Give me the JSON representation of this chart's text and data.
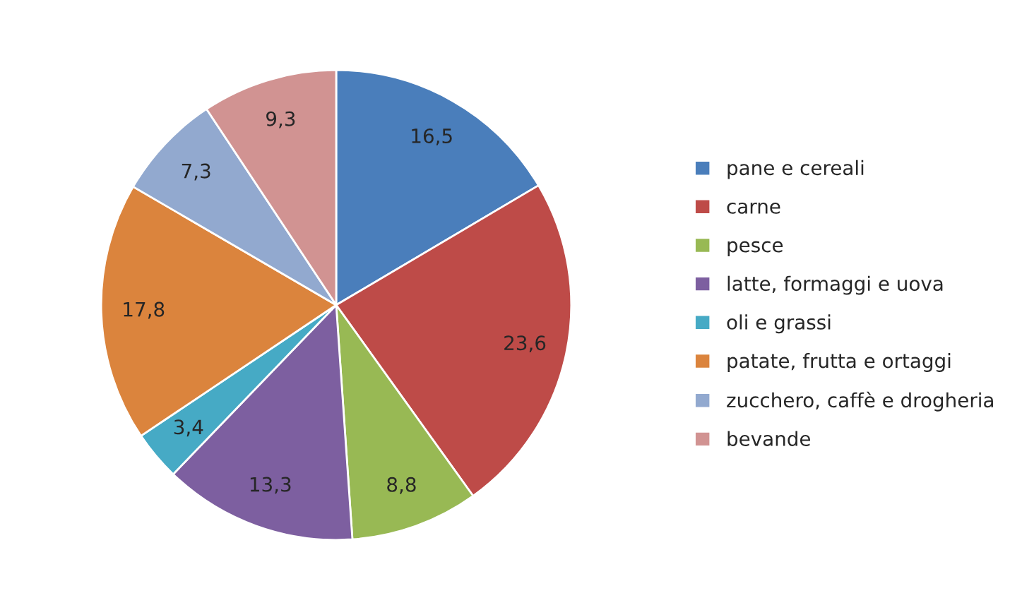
{
  "chart_data": {
    "type": "pie",
    "categories": [
      "pane e cereali",
      "carne",
      "pesce",
      "latte, formaggi e uova",
      "oli e grassi",
      "patate, frutta e ortaggi",
      "zucchero, caffè e drogheria",
      "bevande"
    ],
    "values": [
      16.5,
      23.6,
      8.8,
      13.3,
      3.4,
      17.8,
      7.3,
      9.3
    ],
    "value_labels": [
      "16,5",
      "23,6",
      "8,8",
      "13,3",
      "3,4",
      "17,8",
      "7,3",
      "9,3"
    ],
    "colors": [
      "#4a7ebb",
      "#be4b48",
      "#98b954",
      "#7d5fa0",
      "#46aac5",
      "#db843d",
      "#92a9cf",
      "#d19392"
    ],
    "legend": "right"
  }
}
